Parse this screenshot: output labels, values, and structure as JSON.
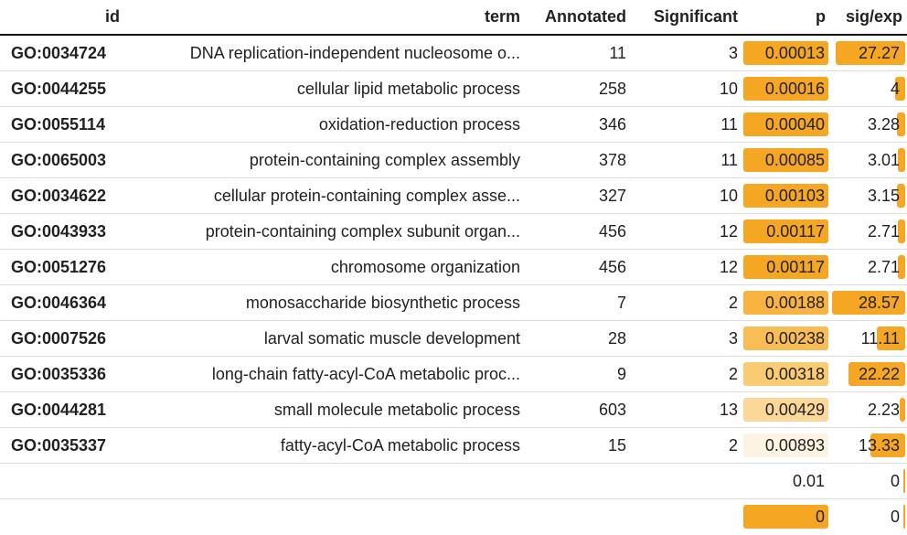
{
  "header": {
    "id": "id",
    "term": "term",
    "annotated": "Annotated",
    "significant": "Significant",
    "p": "p",
    "sig_exp": "sig/exp"
  },
  "colors": {
    "bar_orange": "#f5a623",
    "bar_light": "#fdf3e3"
  },
  "rows": [
    {
      "id": "GO:0034724",
      "term": "DNA replication-independent nucleosome o...",
      "annotated": "11",
      "significant": "3",
      "p": "0.00013",
      "sig_exp": "27.27",
      "p_fill": 1.0,
      "p_color": "#f5a623",
      "se_fill": 0.95
    },
    {
      "id": "GO:0044255",
      "term": "cellular lipid metabolic process",
      "annotated": "258",
      "significant": "10",
      "p": "0.00016",
      "sig_exp": "4",
      "p_fill": 1.0,
      "p_color": "#f5a623",
      "se_fill": 0.14
    },
    {
      "id": "GO:0055114",
      "term": "oxidation-reduction process",
      "annotated": "346",
      "significant": "11",
      "p": "0.00040",
      "sig_exp": "3.28",
      "p_fill": 1.0,
      "p_color": "#f5a623",
      "se_fill": 0.11
    },
    {
      "id": "GO:0065003",
      "term": "protein-containing complex assembly",
      "annotated": "378",
      "significant": "11",
      "p": "0.00085",
      "sig_exp": "3.01",
      "p_fill": 1.0,
      "p_color": "#f5a623",
      "se_fill": 0.105
    },
    {
      "id": "GO:0034622",
      "term": "cellular protein-containing complex asse...",
      "annotated": "327",
      "significant": "10",
      "p": "0.00103",
      "sig_exp": "3.15",
      "p_fill": 1.0,
      "p_color": "#f5a623",
      "se_fill": 0.11
    },
    {
      "id": "GO:0043933",
      "term": "protein-containing complex subunit organ...",
      "annotated": "456",
      "significant": "12",
      "p": "0.00117",
      "sig_exp": "2.71",
      "p_fill": 1.0,
      "p_color": "#f5a623",
      "se_fill": 0.095
    },
    {
      "id": "GO:0051276",
      "term": "chromosome organization",
      "annotated": "456",
      "significant": "12",
      "p": "0.00117",
      "sig_exp": "2.71",
      "p_fill": 1.0,
      "p_color": "#f5a623",
      "se_fill": 0.095
    },
    {
      "id": "GO:0046364",
      "term": "monosaccharide biosynthetic process",
      "annotated": "7",
      "significant": "2",
      "p": "0.00188",
      "sig_exp": "28.57",
      "p_fill": 1.0,
      "p_color": "#f8b340",
      "se_fill": 1.0
    },
    {
      "id": "GO:0007526",
      "term": "larval somatic muscle development",
      "annotated": "28",
      "significant": "3",
      "p": "0.00238",
      "sig_exp": "11.11",
      "p_fill": 1.0,
      "p_color": "#f9bd55",
      "se_fill": 0.39
    },
    {
      "id": "GO:0035336",
      "term": "long-chain fatty-acyl-CoA metabolic proc...",
      "annotated": "9",
      "significant": "2",
      "p": "0.00318",
      "sig_exp": "22.22",
      "p_fill": 1.0,
      "p_color": "#facb73",
      "se_fill": 0.78
    },
    {
      "id": "GO:0044281",
      "term": "small molecule metabolic process",
      "annotated": "603",
      "significant": "13",
      "p": "0.00429",
      "sig_exp": "2.23",
      "p_fill": 1.0,
      "p_color": "#fbd898",
      "se_fill": 0.078
    },
    {
      "id": "GO:0035337",
      "term": "fatty-acyl-CoA metabolic process",
      "annotated": "15",
      "significant": "2",
      "p": "0.00893",
      "sig_exp": "13.33",
      "p_fill": 1.0,
      "p_color": "#fdf3e3",
      "se_fill": 0.47
    },
    {
      "id": "",
      "term": "",
      "annotated": "",
      "significant": "",
      "p": "0.01",
      "sig_exp": "0",
      "p_fill": 0.0,
      "p_color": "#ffffff",
      "se_fill": 0.02
    },
    {
      "id": "",
      "term": "",
      "annotated": "",
      "significant": "",
      "p": "0",
      "sig_exp": "0",
      "p_fill": 1.0,
      "p_color": "#f5a623",
      "se_fill": 0.02
    }
  ]
}
